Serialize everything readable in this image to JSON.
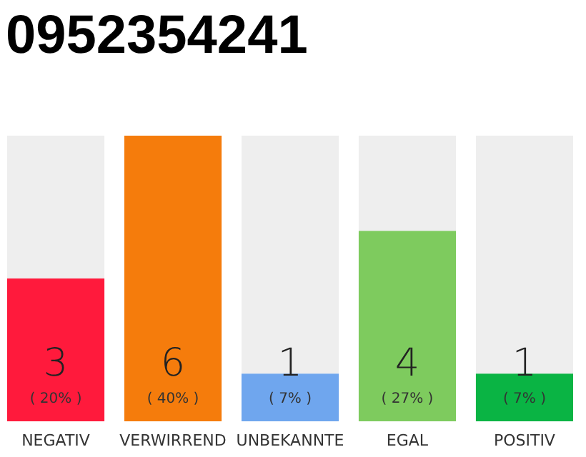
{
  "chart_data": {
    "type": "bar",
    "title": "0952354241",
    "categories": [
      "NEGATIV",
      "VERWIRREND",
      "UNBEKANNTE",
      "EGAL",
      "POSITIV"
    ],
    "values": [
      3,
      6,
      1,
      4,
      1
    ],
    "colors": [
      "#ff1a3c",
      "#f57c0c",
      "#6fa6ee",
      "#7ecb5e",
      "#0ab444"
    ],
    "data_labels": true,
    "annotations": [
      "( 20% )",
      "( 40% )",
      "( 7% )",
      "( 27% )",
      "( 7% )"
    ],
    "tick_labels": "x"
  }
}
